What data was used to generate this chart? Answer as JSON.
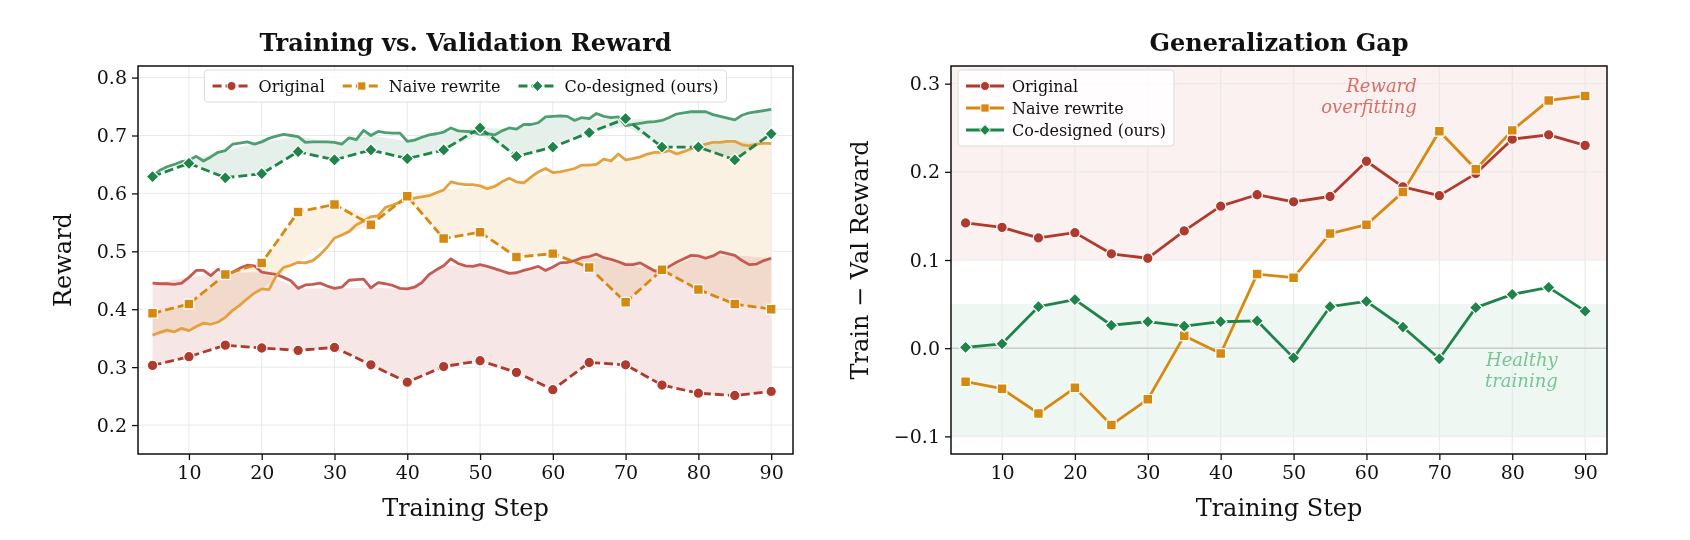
{
  "chart_data": [
    {
      "type": "line",
      "title": "Training vs. Validation Reward",
      "xlabel": "Training Step",
      "ylabel": "Reward",
      "xlim": [
        3,
        93
      ],
      "xticks": [
        10,
        20,
        30,
        40,
        50,
        60,
        70,
        80,
        90
      ],
      "ylim": [
        0.15,
        0.82
      ],
      "yticks": [
        0.2,
        0.3,
        0.4,
        0.5,
        0.6,
        0.7,
        0.8
      ],
      "grid": true,
      "legend": "top",
      "x": [
        5,
        10,
        15,
        20,
        25,
        30,
        35,
        40,
        45,
        50,
        55,
        60,
        65,
        70,
        75,
        80,
        85,
        90
      ],
      "series": [
        {
          "name": "Original",
          "color": "#b03a2e",
          "line_style": "dashed",
          "marker": "circle",
          "values": [
            0.303,
            0.318,
            0.338,
            0.333,
            0.329,
            0.334,
            0.304,
            0.274,
            0.301,
            0.311,
            0.291,
            0.261,
            0.308,
            0.304,
            0.269,
            0.255,
            0.251,
            0.258
          ],
          "lower": [
            0.303,
            0.318,
            0.338,
            0.333,
            0.329,
            0.334,
            0.304,
            0.274,
            0.301,
            0.311,
            0.291,
            0.261,
            0.308,
            0.304,
            0.269,
            0.255,
            0.251,
            0.258
          ],
          "upper": [
            0.445,
            0.455,
            0.463,
            0.464,
            0.436,
            0.436,
            0.437,
            0.435,
            0.475,
            0.477,
            0.463,
            0.473,
            0.491,
            0.477,
            0.467,
            0.492,
            0.493,
            0.488
          ]
        },
        {
          "name": "Naive rewrite",
          "color": "#d68910",
          "line_style": "dashed",
          "marker": "square",
          "values": [
            0.393,
            0.409,
            0.46,
            0.48,
            0.568,
            0.581,
            0.546,
            0.595,
            0.522,
            0.533,
            0.49,
            0.496,
            0.472,
            0.412,
            0.468,
            0.434,
            0.409,
            0.4
          ],
          "lower": [
            0.355,
            0.363,
            0.386,
            0.435,
            0.481,
            0.523,
            0.546,
            0.589,
            0.522,
            0.533,
            0.49,
            0.496,
            0.472,
            0.412,
            0.468,
            0.434,
            0.409,
            0.4
          ],
          "upper": [
            0.393,
            0.409,
            0.46,
            0.48,
            0.568,
            0.581,
            0.56,
            0.595,
            0.606,
            0.613,
            0.62,
            0.636,
            0.649,
            0.658,
            0.671,
            0.681,
            0.69,
            0.686
          ]
        },
        {
          "name": "Co-designed (ours)",
          "color": "#1e8449",
          "line_style": "dashed",
          "marker": "diamond",
          "values": [
            0.629,
            0.652,
            0.627,
            0.634,
            0.672,
            0.658,
            0.675,
            0.66,
            0.675,
            0.713,
            0.664,
            0.68,
            0.705,
            0.729,
            0.68,
            0.68,
            0.658,
            0.703
          ],
          "lower": [
            0.629,
            0.652,
            0.627,
            0.634,
            0.672,
            0.658,
            0.675,
            0.66,
            0.675,
            0.702,
            0.664,
            0.68,
            0.705,
            0.717,
            0.68,
            0.68,
            0.658,
            0.703
          ],
          "upper": [
            0.63,
            0.657,
            0.674,
            0.689,
            0.698,
            0.688,
            0.7,
            0.69,
            0.706,
            0.713,
            0.711,
            0.733,
            0.729,
            0.729,
            0.726,
            0.741,
            0.727,
            0.745
          ]
        },
        {
          "color": "#c55a52",
          "line_style": "solid",
          "marker": "none",
          "x": [
            5,
            6,
            7,
            8,
            9,
            10,
            11,
            12,
            13,
            14,
            15,
            16,
            17,
            18,
            19,
            20,
            21,
            22,
            23,
            24,
            25,
            26,
            27,
            28,
            29,
            30,
            31,
            32,
            33,
            34,
            35,
            36,
            37,
            38,
            39,
            40,
            41,
            42,
            43,
            44,
            45,
            46,
            47,
            48,
            49,
            50,
            51,
            52,
            53,
            54,
            55,
            56,
            57,
            58,
            59,
            60,
            61,
            62,
            63,
            64,
            65,
            66,
            67,
            68,
            69,
            70,
            71,
            72,
            73,
            74,
            75,
            76,
            77,
            78,
            79,
            80,
            81,
            82,
            83,
            84,
            85,
            86,
            87,
            88,
            89,
            90
          ],
          "values": [
            0.445,
            0.444,
            0.444,
            0.443,
            0.445,
            0.455,
            0.467,
            0.467,
            0.458,
            0.469,
            0.463,
            0.464,
            0.471,
            0.476,
            0.475,
            0.464,
            0.462,
            0.46,
            0.455,
            0.449,
            0.436,
            0.442,
            0.443,
            0.445,
            0.44,
            0.436,
            0.438,
            0.45,
            0.451,
            0.452,
            0.437,
            0.446,
            0.444,
            0.441,
            0.436,
            0.435,
            0.438,
            0.446,
            0.46,
            0.468,
            0.475,
            0.487,
            0.479,
            0.475,
            0.474,
            0.477,
            0.474,
            0.47,
            0.466,
            0.462,
            0.463,
            0.467,
            0.47,
            0.474,
            0.467,
            0.473,
            0.48,
            0.481,
            0.484,
            0.489,
            0.491,
            0.495,
            0.489,
            0.486,
            0.482,
            0.477,
            0.477,
            0.48,
            0.473,
            0.466,
            0.467,
            0.474,
            0.481,
            0.487,
            0.493,
            0.492,
            0.488,
            0.492,
            0.499,
            0.496,
            0.493,
            0.484,
            0.477,
            0.478,
            0.484,
            0.488
          ]
        },
        {
          "color": "#e3a13e",
          "line_style": "solid",
          "marker": "none",
          "x": [
            5,
            6,
            7,
            8,
            9,
            10,
            11,
            12,
            13,
            14,
            15,
            16,
            17,
            18,
            19,
            20,
            21,
            22,
            23,
            24,
            25,
            26,
            27,
            28,
            29,
            30,
            31,
            32,
            33,
            34,
            35,
            36,
            37,
            38,
            39,
            40,
            41,
            42,
            43,
            44,
            45,
            46,
            47,
            48,
            49,
            50,
            51,
            52,
            53,
            54,
            55,
            56,
            57,
            58,
            59,
            60,
            61,
            62,
            63,
            64,
            65,
            66,
            67,
            68,
            69,
            70,
            71,
            72,
            73,
            74,
            75,
            76,
            77,
            78,
            79,
            80,
            81,
            82,
            83,
            84,
            85,
            86,
            87,
            88,
            89,
            90
          ],
          "values": [
            0.355,
            0.36,
            0.364,
            0.361,
            0.367,
            0.363,
            0.37,
            0.376,
            0.374,
            0.378,
            0.386,
            0.398,
            0.407,
            0.418,
            0.428,
            0.435,
            0.434,
            0.458,
            0.472,
            0.476,
            0.481,
            0.48,
            0.484,
            0.494,
            0.507,
            0.523,
            0.528,
            0.534,
            0.546,
            0.552,
            0.56,
            0.561,
            0.576,
            0.58,
            0.585,
            0.589,
            0.592,
            0.594,
            0.596,
            0.601,
            0.606,
            0.62,
            0.617,
            0.615,
            0.615,
            0.613,
            0.608,
            0.612,
            0.62,
            0.626,
            0.62,
            0.618,
            0.628,
            0.637,
            0.643,
            0.636,
            0.637,
            0.64,
            0.643,
            0.649,
            0.649,
            0.65,
            0.659,
            0.656,
            0.668,
            0.658,
            0.66,
            0.663,
            0.668,
            0.671,
            0.671,
            0.674,
            0.668,
            0.672,
            0.677,
            0.681,
            0.685,
            0.688,
            0.688,
            0.69,
            0.69,
            0.684,
            0.682,
            0.685,
            0.687,
            0.686
          ]
        },
        {
          "color": "#4d9e70",
          "line_style": "solid",
          "marker": "none",
          "x": [
            5,
            6,
            7,
            8,
            9,
            10,
            11,
            12,
            13,
            14,
            15,
            16,
            17,
            18,
            19,
            20,
            21,
            22,
            23,
            24,
            25,
            26,
            27,
            28,
            29,
            30,
            31,
            32,
            33,
            34,
            35,
            36,
            37,
            38,
            39,
            40,
            41,
            42,
            43,
            44,
            45,
            46,
            47,
            48,
            49,
            50,
            51,
            52,
            53,
            54,
            55,
            56,
            57,
            58,
            59,
            60,
            61,
            62,
            63,
            64,
            65,
            66,
            67,
            68,
            69,
            70,
            71,
            72,
            73,
            74,
            75,
            76,
            77,
            78,
            79,
            80,
            81,
            82,
            83,
            84,
            85,
            86,
            87,
            88,
            89,
            90
          ],
          "values": [
            0.63,
            0.64,
            0.646,
            0.65,
            0.655,
            0.657,
            0.664,
            0.656,
            0.663,
            0.671,
            0.674,
            0.685,
            0.687,
            0.689,
            0.685,
            0.689,
            0.695,
            0.699,
            0.702,
            0.7,
            0.698,
            0.688,
            0.689,
            0.689,
            0.689,
            0.688,
            0.685,
            0.696,
            0.693,
            0.709,
            0.7,
            0.707,
            0.705,
            0.704,
            0.704,
            0.69,
            0.692,
            0.697,
            0.701,
            0.703,
            0.706,
            0.713,
            0.708,
            0.707,
            0.706,
            0.702,
            0.703,
            0.701,
            0.708,
            0.713,
            0.711,
            0.719,
            0.719,
            0.722,
            0.732,
            0.733,
            0.734,
            0.733,
            0.726,
            0.731,
            0.729,
            0.738,
            0.733,
            0.731,
            0.732,
            0.717,
            0.719,
            0.721,
            0.723,
            0.724,
            0.726,
            0.731,
            0.737,
            0.739,
            0.741,
            0.741,
            0.741,
            0.736,
            0.733,
            0.73,
            0.727,
            0.735,
            0.739,
            0.741,
            0.743,
            0.745
          ]
        }
      ]
    },
    {
      "type": "line",
      "title": "Generalization Gap",
      "xlabel": "Training Step",
      "ylabel": "Train − Val Reward",
      "xlim": [
        3,
        93
      ],
      "xticks": [
        10,
        20,
        30,
        40,
        50,
        60,
        70,
        80,
        90
      ],
      "ylim": [
        -0.12,
        0.32
      ],
      "yticks": [
        {
          "value": -0.1,
          "label": "−0.1"
        },
        {
          "value": 0,
          "label": "0.0"
        },
        0.1,
        0.2,
        0.3
      ],
      "grid": true,
      "legend": "top left",
      "x": [
        5,
        10,
        15,
        20,
        25,
        30,
        35,
        40,
        45,
        50,
        55,
        60,
        65,
        70,
        75,
        80,
        85,
        90
      ],
      "bands": [
        {
          "axis": "y",
          "from": 0.1,
          "to": 0.32,
          "label": "Reward overfitting",
          "color": "#fbf1f0"
        },
        {
          "axis": "y",
          "from": -0.1,
          "to": 0.05,
          "label": "Healthy training",
          "color": "#eff7f2"
        }
      ],
      "ref_lines": [
        {
          "axis": "y",
          "value": 0,
          "color": "#bbbbbb"
        }
      ],
      "series": [
        {
          "name": "Original",
          "color": "#b03a2e",
          "line_style": "solid",
          "marker": "circle",
          "values": [
            0.142,
            0.137,
            0.125,
            0.131,
            0.107,
            0.102,
            0.133,
            0.161,
            0.174,
            0.166,
            0.172,
            0.212,
            0.183,
            0.173,
            0.198,
            0.237,
            0.242,
            0.23
          ]
        },
        {
          "name": "Naive rewrite",
          "color": "#d68910",
          "line_style": "solid",
          "marker": "square",
          "values": [
            -0.038,
            -0.046,
            -0.074,
            -0.045,
            -0.087,
            -0.058,
            0.014,
            -0.006,
            0.084,
            0.08,
            0.13,
            0.14,
            0.177,
            0.246,
            0.203,
            0.247,
            0.281,
            0.286
          ]
        },
        {
          "name": "Co-designed (ours)",
          "color": "#1e8449",
          "line_style": "solid",
          "marker": "diamond",
          "values": [
            0.001,
            0.005,
            0.047,
            0.055,
            0.026,
            0.03,
            0.025,
            0.03,
            0.031,
            -0.011,
            0.047,
            0.053,
            0.024,
            -0.012,
            0.046,
            0.061,
            0.069,
            0.042
          ]
        }
      ]
    }
  ]
}
